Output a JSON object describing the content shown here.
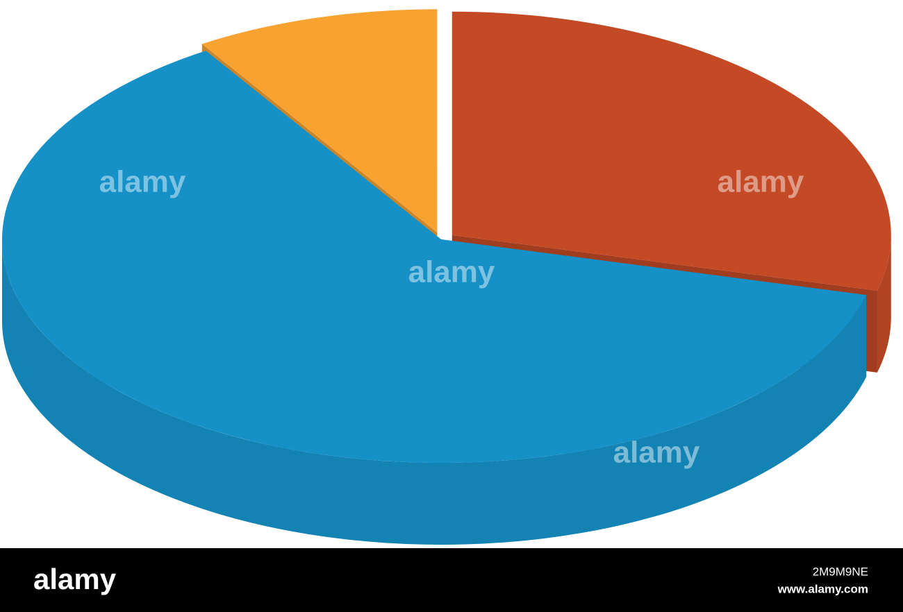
{
  "chart_data": {
    "type": "pie3d",
    "categories": [
      null,
      null,
      null
    ],
    "values": [
      29,
      62,
      9
    ],
    "colors": [
      "#c44a26",
      "#1591c8",
      "#f8a232"
    ],
    "start_angle": 90
  },
  "watermark": "alamy",
  "footer": {
    "logo": "alamy",
    "image_id": "2M9M9NE",
    "url": "www.alamy.com"
  }
}
